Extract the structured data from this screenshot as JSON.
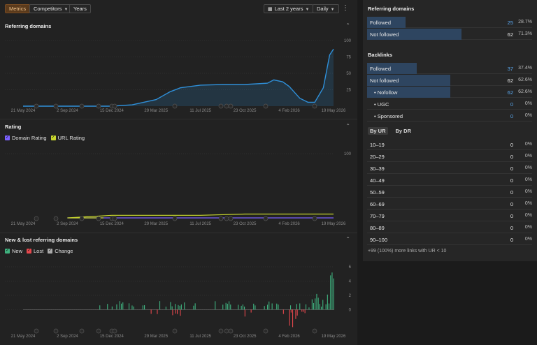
{
  "toolbar": {
    "tabs": [
      "Metrics",
      "Competitors",
      "Years"
    ],
    "range": "Last 2 years",
    "interval": "Daily",
    "more": "⋮"
  },
  "x_ticks": [
    "21 May 2024",
    "2 Sep 2024",
    "15 Dec 2024",
    "29 Mar 2025",
    "11 Jul 2025",
    "23 Oct 2025",
    "4 Feb 2026",
    "19 May 2026"
  ],
  "sections": {
    "referring": {
      "title": "Referring domains",
      "y_ticks": [
        "100",
        "75",
        "50",
        "25"
      ]
    },
    "rating": {
      "title": "Rating",
      "legend": [
        "Domain Rating",
        "URL Rating"
      ],
      "y_ticks": [
        "100"
      ]
    },
    "newlost": {
      "title": "New & lost referring domains",
      "legend": [
        "New",
        "Lost",
        "Change"
      ],
      "y_ticks": [
        "6",
        "4",
        "2",
        "0"
      ]
    }
  },
  "chart_data": [
    {
      "type": "area",
      "title": "Referring domains",
      "x": [
        "2024-05-21",
        "2024-09-02",
        "2024-12-15",
        "2025-02-01",
        "2025-03-29",
        "2025-05-01",
        "2025-05-25",
        "2025-07-11",
        "2025-09-01",
        "2025-10-23",
        "2025-12-15",
        "2025-12-30",
        "2026-01-20",
        "2026-02-04",
        "2026-03-01",
        "2026-03-20",
        "2026-04-05",
        "2026-04-25",
        "2026-05-10",
        "2026-05-19"
      ],
      "values": [
        0,
        0,
        0,
        2,
        10,
        22,
        28,
        32,
        33,
        33,
        35,
        40,
        37,
        30,
        12,
        6,
        6,
        28,
        78,
        87
      ],
      "ylim": [
        0,
        100
      ]
    },
    {
      "type": "line",
      "title": "Rating",
      "series": [
        {
          "name": "Domain Rating",
          "color": "#7b61ff",
          "values": [
            0,
            0,
            0,
            0,
            0,
            0,
            0,
            0
          ]
        },
        {
          "name": "URL Rating",
          "color": "#c8d62e",
          "values": [
            0,
            0,
            4,
            4,
            4,
            6,
            6,
            6
          ]
        }
      ],
      "ylim": [
        0,
        100
      ]
    },
    {
      "type": "bar",
      "title": "New & lost referring domains",
      "series": [
        {
          "name": "New",
          "color": "#3fb27f"
        },
        {
          "name": "Lost",
          "color": "#e5484d"
        },
        {
          "name": "Change",
          "color": "#aaaaaa"
        }
      ],
      "ylim": [
        -3,
        6
      ]
    }
  ],
  "right": {
    "referring": {
      "title": "Referring domains",
      "rows": [
        {
          "label": "Followed",
          "value": "25",
          "pct": "28.7%",
          "blue": true,
          "fill": 0.287
        },
        {
          "label": "Not followed",
          "value": "62",
          "pct": "71.3%",
          "blue": false,
          "fill": 0.713
        }
      ]
    },
    "backlinks": {
      "title": "Backlinks",
      "rows": [
        {
          "label": "Followed",
          "value": "37",
          "pct": "37.4%",
          "blue": true,
          "fill": 0.374
        },
        {
          "label": "Not followed",
          "value": "62",
          "pct": "62.6%",
          "blue": false,
          "fill": 0.626
        },
        {
          "label": "Nofollow",
          "value": "62",
          "pct": "62.6%",
          "blue": true,
          "fill": 0.626,
          "sub": true
        },
        {
          "label": "UGC",
          "value": "0",
          "pct": "0%",
          "blue": true,
          "fill": 0,
          "sub": true
        },
        {
          "label": "Sponsored",
          "value": "0",
          "pct": "0%",
          "blue": true,
          "fill": 0,
          "sub": true
        }
      ]
    },
    "tabs": [
      "By UR",
      "By DR"
    ],
    "ur_rows": [
      {
        "label": "10–19",
        "value": "0",
        "pct": "0%"
      },
      {
        "label": "20–29",
        "value": "0",
        "pct": "0%"
      },
      {
        "label": "30–39",
        "value": "0",
        "pct": "0%"
      },
      {
        "label": "40–49",
        "value": "0",
        "pct": "0%"
      },
      {
        "label": "50–59",
        "value": "0",
        "pct": "0%"
      },
      {
        "label": "60–69",
        "value": "0",
        "pct": "0%"
      },
      {
        "label": "70–79",
        "value": "0",
        "pct": "0%"
      },
      {
        "label": "80–89",
        "value": "0",
        "pct": "0%"
      },
      {
        "label": "90–100",
        "value": "0",
        "pct": "0%"
      }
    ],
    "footnote": "+99 (100%) more links with UR < 10"
  },
  "colors": {
    "accent": "#f0c48c",
    "blue_line": "#2f8fd8",
    "new": "#3fb27f",
    "lost": "#e5484d",
    "dr": "#7b61ff",
    "ur": "#c8d62e"
  }
}
